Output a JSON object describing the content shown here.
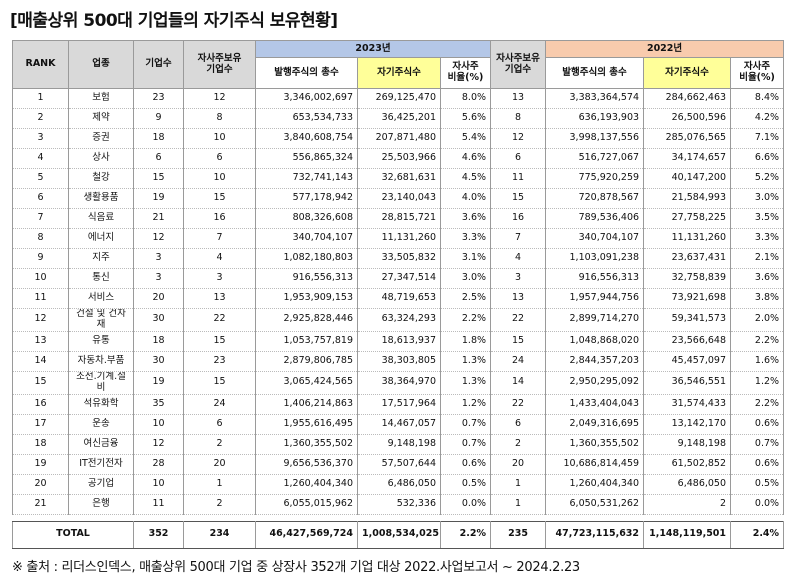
{
  "header": {
    "title": "[매출상위 500대 기업들의 자기주식 보유현황]"
  },
  "table": {
    "headers": {
      "rank": "RANK",
      "industry": "업종",
      "companies": "기업수",
      "holding_2023": "자사주보유\n기업수",
      "year_2023": "2023년",
      "shares_2023": "발행주식의 총수",
      "treasury_2023": "자기주식수",
      "ratio_2023": "자사주\n비율(%)",
      "holding_2022": "자사주보유\n기업수",
      "year_2022": "2022년",
      "shares_2022": "발행주식의 총수",
      "treasury_2022": "자기주식수",
      "ratio_2022": "자사주\n비율(%)"
    },
    "rows": [
      [
        "1",
        "보험",
        "23",
        "12",
        "3,346,002,697",
        "269,125,470",
        "8.0%",
        "13",
        "3,383,364,574",
        "284,662,463",
        "8.4%"
      ],
      [
        "2",
        "제약",
        "9",
        "8",
        "653,534,733",
        "36,425,201",
        "5.6%",
        "8",
        "636,193,903",
        "26,500,596",
        "4.2%"
      ],
      [
        "3",
        "증권",
        "18",
        "10",
        "3,840,608,754",
        "207,871,480",
        "5.4%",
        "12",
        "3,998,137,556",
        "285,076,565",
        "7.1%"
      ],
      [
        "4",
        "상사",
        "6",
        "6",
        "556,865,324",
        "25,503,966",
        "4.6%",
        "6",
        "516,727,067",
        "34,174,657",
        "6.6%"
      ],
      [
        "5",
        "철강",
        "15",
        "10",
        "732,741,143",
        "32,681,631",
        "4.5%",
        "11",
        "775,920,259",
        "40,147,200",
        "5.2%"
      ],
      [
        "6",
        "생활용품",
        "19",
        "15",
        "577,178,942",
        "23,140,043",
        "4.0%",
        "15",
        "720,878,567",
        "21,584,993",
        "3.0%"
      ],
      [
        "7",
        "식음료",
        "21",
        "16",
        "808,326,608",
        "28,815,721",
        "3.6%",
        "16",
        "789,536,406",
        "27,758,225",
        "3.5%"
      ],
      [
        "8",
        "에너지",
        "12",
        "7",
        "340,704,107",
        "11,131,260",
        "3.3%",
        "7",
        "340,704,107",
        "11,131,260",
        "3.3%"
      ],
      [
        "9",
        "지주",
        "3",
        "4",
        "1,082,180,803",
        "33,505,832",
        "3.1%",
        "4",
        "1,103,091,238",
        "23,637,431",
        "2.1%"
      ],
      [
        "10",
        "통신",
        "3",
        "3",
        "916,556,313",
        "27,347,514",
        "3.0%",
        "3",
        "916,556,313",
        "32,758,839",
        "3.6%"
      ],
      [
        "11",
        "서비스",
        "20",
        "13",
        "1,953,909,153",
        "48,719,653",
        "2.5%",
        "13",
        "1,957,944,756",
        "73,921,698",
        "3.8%"
      ],
      [
        "12",
        "건설 및 건자재",
        "30",
        "22",
        "2,925,828,446",
        "63,324,293",
        "2.2%",
        "22",
        "2,899,714,270",
        "59,341,573",
        "2.0%"
      ],
      [
        "13",
        "유통",
        "18",
        "15",
        "1,053,757,819",
        "18,613,937",
        "1.8%",
        "15",
        "1,048,868,020",
        "23,566,648",
        "2.2%"
      ],
      [
        "14",
        "자동차.부품",
        "30",
        "23",
        "2,879,806,785",
        "38,303,805",
        "1.3%",
        "24",
        "2,844,357,203",
        "45,457,097",
        "1.6%"
      ],
      [
        "15",
        "조선.기계.설비",
        "19",
        "15",
        "3,065,424,565",
        "38,364,970",
        "1.3%",
        "14",
        "2,950,295,092",
        "36,546,551",
        "1.2%"
      ],
      [
        "16",
        "석유화학",
        "35",
        "24",
        "1,406,214,863",
        "17,517,964",
        "1.2%",
        "22",
        "1,433,404,043",
        "31,574,433",
        "2.2%"
      ],
      [
        "17",
        "운송",
        "10",
        "6",
        "1,955,616,495",
        "14,467,057",
        "0.7%",
        "6",
        "2,049,316,695",
        "13,142,170",
        "0.6%"
      ],
      [
        "18",
        "여신금융",
        "12",
        "2",
        "1,360,355,502",
        "9,148,198",
        "0.7%",
        "2",
        "1,360,355,502",
        "9,148,198",
        "0.7%"
      ],
      [
        "19",
        "IT전기전자",
        "28",
        "20",
        "9,656,536,370",
        "57,507,644",
        "0.6%",
        "20",
        "10,686,814,459",
        "61,502,852",
        "0.6%"
      ],
      [
        "20",
        "공기업",
        "10",
        "1",
        "1,260,404,340",
        "6,486,050",
        "0.5%",
        "1",
        "1,260,404,340",
        "6,486,050",
        "0.5%"
      ],
      [
        "21",
        "은행",
        "11",
        "2",
        "6,055,015,962",
        "532,336",
        "0.0%",
        "1",
        "6,050,531,262",
        "2",
        "0.0%"
      ]
    ],
    "total": [
      "TOTAL",
      "352",
      "234",
      "46,427,569,724",
      "1,008,534,025",
      "2.2%",
      "235",
      "47,723,115,632",
      "1,148,119,501",
      "2.4%"
    ]
  },
  "footer": {
    "note": "※ 출처 : 리더스인덱스, 매출상위 500대 기업 중 상장사 352개 기업 대상 2022.사업보고서 ~ 2024.2.23"
  }
}
